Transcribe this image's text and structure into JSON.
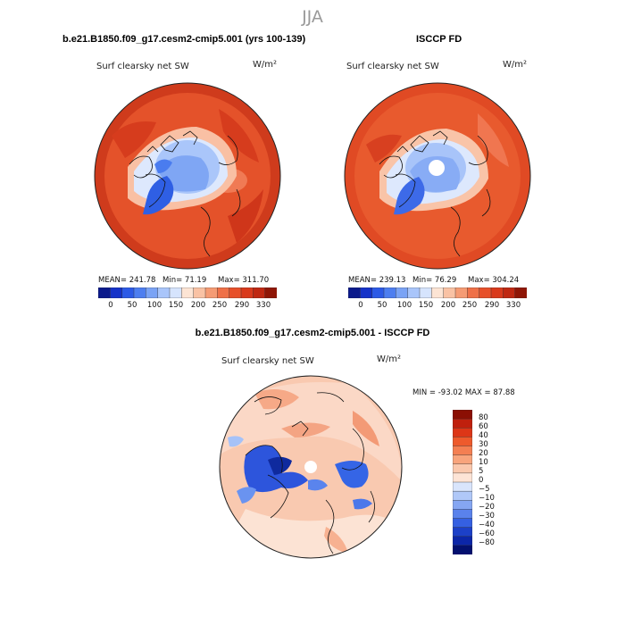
{
  "season": "JJA",
  "left_panel": {
    "case_title": "b.e21.B1850.f09_g17.cesm2-cmip5.001 (yrs 100-139)",
    "var_label": "Surf clearsky net SW",
    "units": "W/m²",
    "stats": {
      "mean": "MEAN= 241.78",
      "min": "Min=   71.19",
      "max": "Max= 311.70"
    }
  },
  "right_panel": {
    "case_title": "ISCCP FD",
    "var_label": "Surf clearsky net SW",
    "units": "W/m²",
    "stats": {
      "mean": "MEAN= 239.13",
      "min": "Min=   76.29",
      "max": "Max= 304.24"
    }
  },
  "diff_panel": {
    "case_title": "b.e21.B1850.f09_g17.cesm2-cmip5.001 - ISCCP FD",
    "var_label": "Surf clearsky net SW",
    "units": "W/m²",
    "minmax": "MIN = -93.02 MAX =  87.88"
  },
  "abs_colorbar": {
    "colors": [
      "#0b1a8c",
      "#1533c9",
      "#2c5ae6",
      "#4d7ef0",
      "#7aa3f5",
      "#a9c5fa",
      "#d6e4fd",
      "#fce4d4",
      "#f9c2a4",
      "#f59b74",
      "#ef7048",
      "#e7502a",
      "#d93a1c",
      "#bf2812",
      "#8f1606"
    ],
    "tick_labels": [
      "0",
      "50",
      "100",
      "150",
      "200",
      "250",
      "290",
      "330"
    ]
  },
  "diff_colorbar": {
    "colors": [
      "#8b0f04",
      "#c0200d",
      "#dd3617",
      "#ee5a2c",
      "#f47f52",
      "#f8a47c",
      "#fac8ad",
      "#fde4d6",
      "#d9e5fc",
      "#b0c8f8",
      "#85a6f2",
      "#5a82ec",
      "#3560e2",
      "#1c40c8",
      "#0c26a8",
      "#03106f"
    ],
    "tick_labels": [
      "80",
      "60",
      "40",
      "30",
      "20",
      "10",
      "5",
      "0",
      "−5",
      "−10",
      "−20",
      "−30",
      "−40",
      "−60",
      "−80"
    ]
  }
}
